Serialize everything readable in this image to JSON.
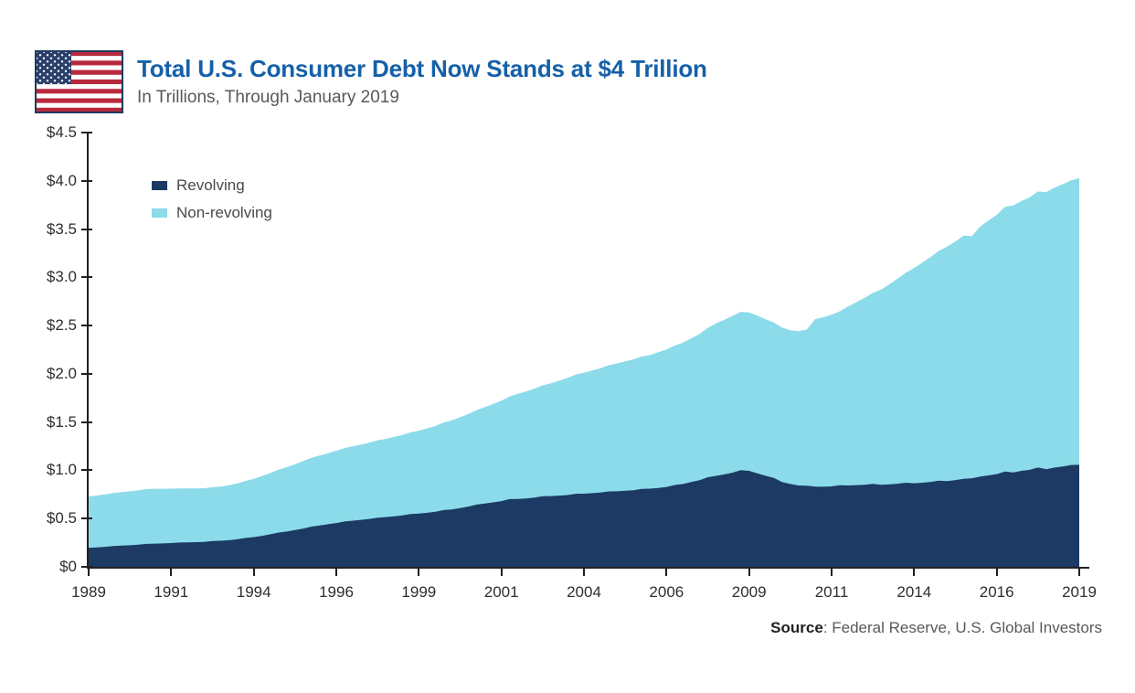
{
  "header": {
    "title": "Total U.S. Consumer Debt Now Stands at $4 Trillion",
    "subtitle": "In Trillions, Through January 2019"
  },
  "source": {
    "label": "Source",
    "text": ": Federal Reserve, U.S. Global Investors"
  },
  "colors": {
    "title_blue": "#1560A8",
    "subtitle_gray": "#58595B",
    "axis_line": "#231F20",
    "revolving_navy": "#1C3A63",
    "nonrevolving_lightblue": "#8CDBEA",
    "flag_red": "#B8293D",
    "flag_canton_blue": "#2B3F6B"
  },
  "chart_data": {
    "type": "area",
    "stacked": true,
    "title": "Total U.S. Consumer Debt Now Stands at $4 Trillion",
    "subtitle": "In Trillions, Through January 2019",
    "x_start": "Jan 1989",
    "x_end": "Jan 2019",
    "frequency": "quarterly",
    "grid": false,
    "legend_position": "top-left",
    "ylim": [
      0,
      4.5
    ],
    "y_tick_labels": [
      "$4.5",
      "$4.0",
      "$3.5",
      "$3.0",
      "$2.5",
      "$2.0",
      "$1.5",
      "$1.0",
      "$0.5",
      "$0"
    ],
    "x_tick_labels": [
      "1989",
      "1991",
      "1994",
      "1996",
      "1999",
      "2001",
      "2004",
      "2006",
      "2009",
      "2011",
      "2014",
      "2016",
      "2019"
    ],
    "series": [
      {
        "name": "Revolving",
        "color": "#1C3A63",
        "values": [
          0.197,
          0.201,
          0.207,
          0.216,
          0.22,
          0.224,
          0.229,
          0.238,
          0.241,
          0.243,
          0.246,
          0.252,
          0.254,
          0.256,
          0.259,
          0.267,
          0.27,
          0.276,
          0.285,
          0.299,
          0.308,
          0.321,
          0.337,
          0.355,
          0.366,
          0.381,
          0.397,
          0.417,
          0.428,
          0.441,
          0.454,
          0.47,
          0.478,
          0.487,
          0.496,
          0.51,
          0.515,
          0.523,
          0.532,
          0.547,
          0.552,
          0.56,
          0.57,
          0.588,
          0.595,
          0.609,
          0.624,
          0.645,
          0.656,
          0.668,
          0.681,
          0.702,
          0.703,
          0.709,
          0.717,
          0.732,
          0.733,
          0.738,
          0.744,
          0.757,
          0.758,
          0.764,
          0.77,
          0.782,
          0.783,
          0.788,
          0.794,
          0.808,
          0.81,
          0.818,
          0.828,
          0.848,
          0.858,
          0.878,
          0.898,
          0.928,
          0.943,
          0.958,
          0.976,
          1.002,
          0.995,
          0.968,
          0.944,
          0.922,
          0.879,
          0.858,
          0.843,
          0.84,
          0.832,
          0.83,
          0.834,
          0.845,
          0.843,
          0.847,
          0.851,
          0.86,
          0.851,
          0.855,
          0.861,
          0.872,
          0.866,
          0.872,
          0.88,
          0.893,
          0.889,
          0.899,
          0.911,
          0.918,
          0.935,
          0.947,
          0.961,
          0.988,
          0.978,
          0.995,
          1.005,
          1.029,
          1.012,
          1.029,
          1.04,
          1.055,
          1.057
        ]
      },
      {
        "name": "Non-revolving",
        "color": "#8CDBEA",
        "values": [
          0.532,
          0.538,
          0.544,
          0.549,
          0.554,
          0.559,
          0.563,
          0.567,
          0.568,
          0.566,
          0.564,
          0.561,
          0.559,
          0.557,
          0.556,
          0.558,
          0.561,
          0.569,
          0.579,
          0.591,
          0.604,
          0.619,
          0.635,
          0.651,
          0.667,
          0.683,
          0.699,
          0.713,
          0.725,
          0.737,
          0.749,
          0.761,
          0.771,
          0.781,
          0.791,
          0.801,
          0.811,
          0.823,
          0.835,
          0.847,
          0.859,
          0.874,
          0.889,
          0.907,
          0.924,
          0.941,
          0.959,
          0.979,
          0.999,
          1.019,
          1.04,
          1.064,
          1.089,
          1.109,
          1.129,
          1.149,
          1.169,
          1.191,
          1.213,
          1.235,
          1.254,
          1.271,
          1.289,
          1.307,
          1.324,
          1.341,
          1.357,
          1.371,
          1.385,
          1.405,
          1.425,
          1.445,
          1.465,
          1.49,
          1.515,
          1.548,
          1.58,
          1.602,
          1.625,
          1.64,
          1.642,
          1.635,
          1.622,
          1.61,
          1.6,
          1.594,
          1.6,
          1.618,
          1.734,
          1.756,
          1.778,
          1.803,
          1.856,
          1.896,
          1.937,
          1.979,
          2.021,
          2.073,
          2.125,
          2.177,
          2.231,
          2.281,
          2.331,
          2.381,
          2.431,
          2.473,
          2.52,
          2.51,
          2.592,
          2.643,
          2.686,
          2.742,
          2.768,
          2.797,
          2.823,
          2.86,
          2.872,
          2.901,
          2.925,
          2.949,
          2.972
        ]
      }
    ]
  }
}
